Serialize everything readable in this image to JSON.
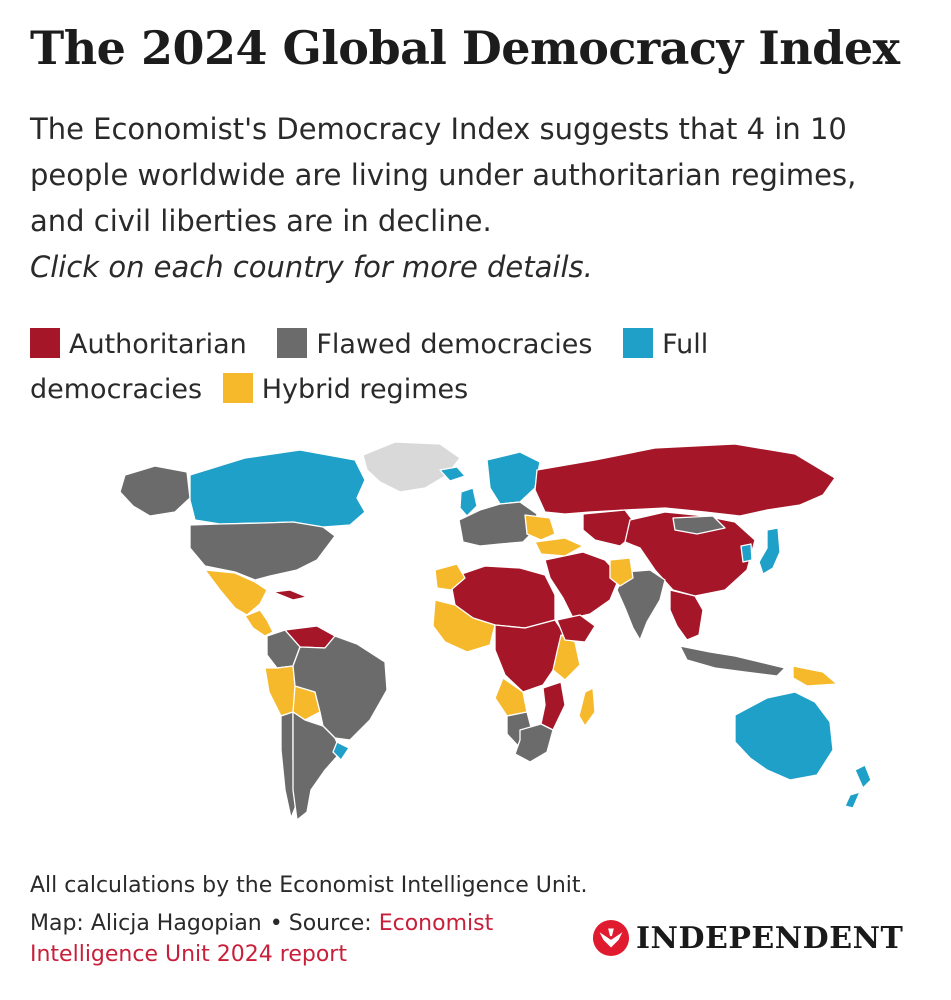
{
  "header": {
    "title": "The 2024 Global Democracy Index",
    "subtitle_lines": [
      "The Economist's Democracy Index suggests that 4 in 10",
      "people worldwide are living under authoritarian regimes,",
      "and civil liberties are in decline."
    ],
    "instruction": "Click on each country for more details."
  },
  "legend": [
    {
      "label": "Authoritarian",
      "color": "#a51728"
    },
    {
      "label": "Flawed democracies",
      "color": "#6b6b6b"
    },
    {
      "label": "Full democracies",
      "label_part1": "Full",
      "label_part2": "democracies",
      "color": "#1ea0c8"
    },
    {
      "label": "Hybrid regimes",
      "color": "#f6b92b"
    }
  ],
  "map": {
    "no_data_color": "#d9d9d9",
    "regions": [
      {
        "name": "Greenland",
        "category": "No data"
      },
      {
        "name": "Canada",
        "category": "Full democracies"
      },
      {
        "name": "Alaska",
        "category": "Flawed democracies"
      },
      {
        "name": "United States",
        "category": "Flawed democracies"
      },
      {
        "name": "Mexico",
        "category": "Hybrid regimes"
      },
      {
        "name": "Central America",
        "category": "Hybrid regimes"
      },
      {
        "name": "Cuba",
        "category": "Authoritarian"
      },
      {
        "name": "Venezuela",
        "category": "Authoritarian"
      },
      {
        "name": "Colombia",
        "category": "Flawed democracies"
      },
      {
        "name": "Peru",
        "category": "Hybrid regimes"
      },
      {
        "name": "Bolivia",
        "category": "Hybrid regimes"
      },
      {
        "name": "Brazil",
        "category": "Flawed democracies"
      },
      {
        "name": "Chile",
        "category": "Flawed democracies"
      },
      {
        "name": "Argentina",
        "category": "Flawed democracies"
      },
      {
        "name": "Uruguay",
        "category": "Full democracies"
      },
      {
        "name": "Iceland",
        "category": "Full democracies"
      },
      {
        "name": "Nordic countries",
        "category": "Full democracies"
      },
      {
        "name": "United Kingdom",
        "category": "Full democracies"
      },
      {
        "name": "Western Europe",
        "category": "Flawed democracies"
      },
      {
        "name": "Balkans",
        "category": "Hybrid regimes"
      },
      {
        "name": "Turkey",
        "category": "Hybrid regimes"
      },
      {
        "name": "Russia",
        "category": "Authoritarian"
      },
      {
        "name": "Central Asia",
        "category": "Authoritarian"
      },
      {
        "name": "China",
        "category": "Authoritarian"
      },
      {
        "name": "Mongolia",
        "category": "Flawed democracies"
      },
      {
        "name": "Middle East",
        "category": "Authoritarian"
      },
      {
        "name": "India",
        "category": "Flawed democracies"
      },
      {
        "name": "Pakistan",
        "category": "Hybrid regimes"
      },
      {
        "name": "Southeast Asia",
        "category": "Authoritarian"
      },
      {
        "name": "Japan",
        "category": "Full democracies"
      },
      {
        "name": "South Korea",
        "category": "Full democracies"
      },
      {
        "name": "Indonesia",
        "category": "Flawed democracies"
      },
      {
        "name": "Papua New Guinea",
        "category": "Hybrid regimes"
      },
      {
        "name": "Australia",
        "category": "Full democracies"
      },
      {
        "name": "New Zealand",
        "category": "Full democracies"
      },
      {
        "name": "North Africa",
        "category": "Authoritarian"
      },
      {
        "name": "Morocco",
        "category": "Hybrid regimes"
      },
      {
        "name": "West Africa",
        "category": "Hybrid regimes"
      },
      {
        "name": "Central Africa",
        "category": "Authoritarian"
      },
      {
        "name": "East Africa",
        "category": "Hybrid regimes"
      },
      {
        "name": "Horn of Africa",
        "category": "Authoritarian"
      },
      {
        "name": "Angola",
        "category": "Hybrid regimes"
      },
      {
        "name": "Mozambique",
        "category": "Authoritarian"
      },
      {
        "name": "Namibia",
        "category": "Flawed democracies"
      },
      {
        "name": "South Africa",
        "category": "Flawed democracies"
      },
      {
        "name": "Madagascar",
        "category": "Hybrid regimes"
      }
    ]
  },
  "footer": {
    "note": "All calculations by the Economist Intelligence Unit.",
    "credit_prefix": "Map: Alicja Hagopian",
    "dot": "•",
    "source_label": "Source:",
    "source_link": "Economist Intelligence Unit 2024 report",
    "source_color": "#c81f3a",
    "brand": "INDEPENDENT",
    "brand_logo_icon": "eagle-logo-icon"
  }
}
